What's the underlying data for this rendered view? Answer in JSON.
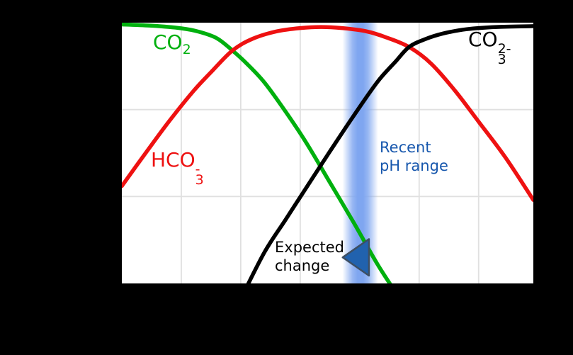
{
  "figure": {
    "background": "#000000",
    "plot_background": "#ffffff",
    "grid_color": "#e0e0e0"
  },
  "chart_data": {
    "type": "line",
    "title": "",
    "xlabel": "",
    "ylabel": "",
    "x_range": [
      4.0,
      10.92
    ],
    "y_log_range": [
      0,
      -3
    ],
    "grid": true,
    "legend": "inline-curve-labels",
    "x_gridlines_ph": [
      5,
      6,
      7,
      8,
      9,
      10
    ],
    "y_gridlines_log": [
      -1,
      -2
    ],
    "series": [
      {
        "name": "CO2",
        "color": "#00b00e",
        "points": [
          [
            4.0,
            -0.02
          ],
          [
            4.5,
            -0.035
          ],
          [
            5.0,
            -0.065
          ],
          [
            5.3,
            -0.105
          ],
          [
            5.6,
            -0.18
          ],
          [
            5.86,
            -0.32
          ],
          [
            6.1,
            -0.47
          ],
          [
            6.4,
            -0.69
          ],
          [
            6.75,
            -1.02
          ],
          [
            7.1,
            -1.38
          ],
          [
            7.5,
            -1.84
          ],
          [
            7.9,
            -2.3
          ],
          [
            8.3,
            -2.78
          ],
          [
            8.65,
            -3.15
          ]
        ]
      },
      {
        "name": "HCO3-",
        "color": "#ee1111",
        "points": [
          [
            4.0,
            -1.88
          ],
          [
            4.4,
            -1.5
          ],
          [
            4.8,
            -1.13
          ],
          [
            5.2,
            -0.79
          ],
          [
            5.5,
            -0.57
          ],
          [
            5.86,
            -0.32
          ],
          [
            6.2,
            -0.185
          ],
          [
            6.6,
            -0.1
          ],
          [
            7.0,
            -0.062
          ],
          [
            7.35,
            -0.05
          ],
          [
            7.7,
            -0.062
          ],
          [
            8.1,
            -0.098
          ],
          [
            8.45,
            -0.17
          ],
          [
            8.83,
            -0.28
          ],
          [
            9.2,
            -0.47
          ],
          [
            9.6,
            -0.78
          ],
          [
            10.0,
            -1.14
          ],
          [
            10.45,
            -1.55
          ],
          [
            10.92,
            -2.04
          ]
        ]
      },
      {
        "name": "CO3 2-",
        "color": "#000000",
        "points": [
          [
            6.02,
            -3.15
          ],
          [
            6.4,
            -2.64
          ],
          [
            6.75,
            -2.27
          ],
          [
            7.1,
            -1.9
          ],
          [
            7.5,
            -1.48
          ],
          [
            7.9,
            -1.07
          ],
          [
            8.3,
            -0.68
          ],
          [
            8.6,
            -0.45
          ],
          [
            8.83,
            -0.28
          ],
          [
            9.1,
            -0.19
          ],
          [
            9.4,
            -0.125
          ],
          [
            9.8,
            -0.075
          ],
          [
            10.3,
            -0.05
          ],
          [
            10.92,
            -0.04
          ]
        ]
      }
    ],
    "band": {
      "ph_center": 8.01,
      "ph_half_width": 0.3,
      "color": "#7fa6f0"
    },
    "arrow": {
      "direction": "left",
      "tip_ph": 7.714,
      "base_ph": 8.155,
      "y_center_log": -2.7,
      "half_height_log": 0.21,
      "fill": "#2162ae",
      "stroke": "#3d4f63"
    }
  },
  "labels": {
    "co2": {
      "main": "CO",
      "sub": "2",
      "color": "#00b00e"
    },
    "hco3": {
      "main": "HCO",
      "sub": "3",
      "sup": "-",
      "color": "#ee1111"
    },
    "co3": {
      "main": "CO",
      "sub": "3",
      "sup": "2-",
      "color": "#000000"
    },
    "recent": {
      "line1": "Recent",
      "line2": "pH range",
      "color": "#1757ad"
    },
    "expected": {
      "line1": "Expected",
      "line2": "change",
      "color": "#000000"
    }
  }
}
